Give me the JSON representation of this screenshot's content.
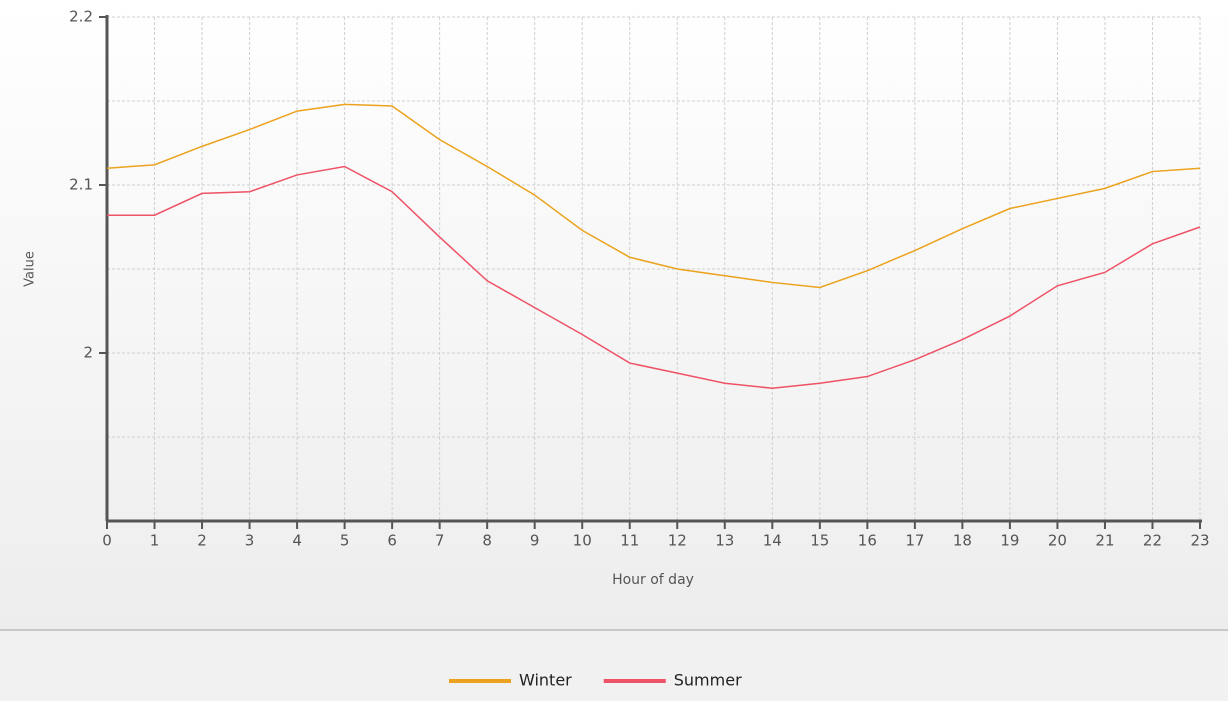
{
  "chart_data": {
    "type": "line",
    "xlabel": "Hour of day",
    "ylabel": "Value",
    "x": [
      0,
      1,
      2,
      3,
      4,
      5,
      6,
      7,
      8,
      9,
      10,
      11,
      12,
      13,
      14,
      15,
      16,
      17,
      18,
      19,
      20,
      21,
      22,
      23
    ],
    "xlim": [
      0,
      23
    ],
    "xticks": [
      0,
      1,
      2,
      3,
      4,
      5,
      6,
      7,
      8,
      9,
      10,
      11,
      12,
      13,
      14,
      15,
      16,
      17,
      18,
      19,
      20,
      21,
      22,
      23
    ],
    "ylim": [
      1.9,
      2.2
    ],
    "yticks": [
      2,
      2.1,
      2.2
    ],
    "yminor": [
      1.95,
      2.05,
      2.15
    ],
    "grid": true,
    "legend": "bottom",
    "series": [
      {
        "name": "Winter",
        "color": "#eba21c",
        "values": [
          2.11,
          2.112,
          2.123,
          2.133,
          2.144,
          2.148,
          2.147,
          2.127,
          2.111,
          2.094,
          2.073,
          2.057,
          2.05,
          2.046,
          2.042,
          2.039,
          2.049,
          2.061,
          2.074,
          2.086,
          2.092,
          2.098,
          2.108,
          2.11
        ]
      },
      {
        "name": "Summer",
        "color": "#ee5266",
        "values": [
          2.082,
          2.082,
          2.095,
          2.096,
          2.106,
          2.111,
          2.096,
          2.069,
          2.043,
          2.027,
          2.011,
          1.994,
          1.988,
          1.982,
          1.979,
          1.982,
          1.986,
          1.996,
          2.008,
          2.022,
          2.04,
          2.048,
          2.065,
          2.075
        ]
      }
    ]
  }
}
